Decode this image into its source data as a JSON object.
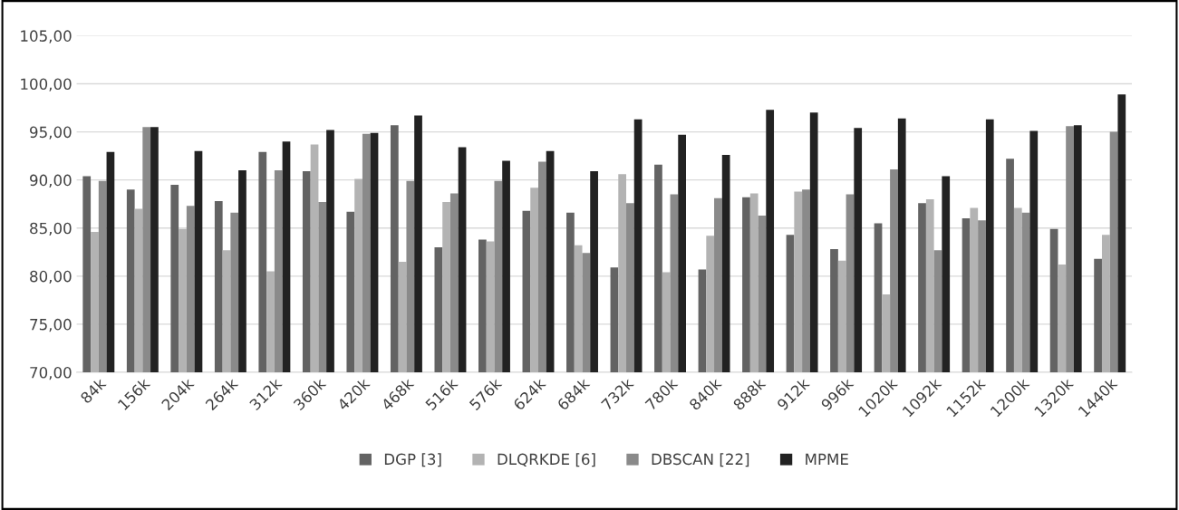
{
  "chart_data": {
    "type": "bar",
    "categories": [
      "84k",
      "156k",
      "204k",
      "264k",
      "312k",
      "360k",
      "420k",
      "468k",
      "516k",
      "576k",
      "624k",
      "684k",
      "732k",
      "780k",
      "840k",
      "888k",
      "912k",
      "996k",
      "1020k",
      "1092k",
      "1152k",
      "1200k",
      "1320k",
      "1440k"
    ],
    "series": [
      {
        "name": "DGP [3]",
        "color": "#636363",
        "values": [
          90.4,
          89.0,
          89.5,
          87.8,
          92.9,
          90.9,
          86.7,
          95.7,
          83.0,
          83.8,
          86.8,
          86.6,
          80.9,
          91.6,
          80.7,
          88.2,
          84.3,
          82.8,
          85.5,
          87.6,
          86.0,
          92.2,
          84.9,
          81.8
        ]
      },
      {
        "name": "DLQRKDE [6]",
        "color": "#b3b3b3",
        "values": [
          84.6,
          87.0,
          84.9,
          82.7,
          80.5,
          93.7,
          90.1,
          81.5,
          87.7,
          83.6,
          89.2,
          83.2,
          90.6,
          80.4,
          84.2,
          88.6,
          88.8,
          81.6,
          78.1,
          88.0,
          87.1,
          87.1,
          81.2,
          84.3
        ]
      },
      {
        "name": "DBSCAN [22]",
        "color": "#8a8a8a",
        "values": [
          89.9,
          95.5,
          87.3,
          86.6,
          91.0,
          87.7,
          94.8,
          89.9,
          88.6,
          89.9,
          91.9,
          82.4,
          87.6,
          88.5,
          88.1,
          86.3,
          89.0,
          88.5,
          91.1,
          82.7,
          85.8,
          86.6,
          95.6,
          95.0
        ]
      },
      {
        "name": "MPME",
        "color": "#222222",
        "values": [
          92.9,
          95.5,
          93.0,
          91.0,
          94.0,
          95.2,
          94.9,
          96.7,
          93.4,
          92.0,
          93.0,
          90.9,
          96.3,
          94.7,
          92.6,
          97.3,
          97.0,
          95.4,
          96.4,
          90.4,
          96.3,
          95.1,
          95.7,
          98.9
        ]
      }
    ],
    "ylim": [
      70,
      105
    ],
    "yticks": [
      {
        "value": 70,
        "label": "70,00"
      },
      {
        "value": 75,
        "label": "75,00"
      },
      {
        "value": 80,
        "label": "80,00"
      },
      {
        "value": 85,
        "label": "85,00"
      },
      {
        "value": 90,
        "label": "90,00"
      },
      {
        "value": 95,
        "label": "95,00"
      },
      {
        "value": 100,
        "label": "100,00"
      },
      {
        "value": 105,
        "label": "105,00"
      }
    ],
    "grid": "y",
    "legend": "bottom"
  }
}
